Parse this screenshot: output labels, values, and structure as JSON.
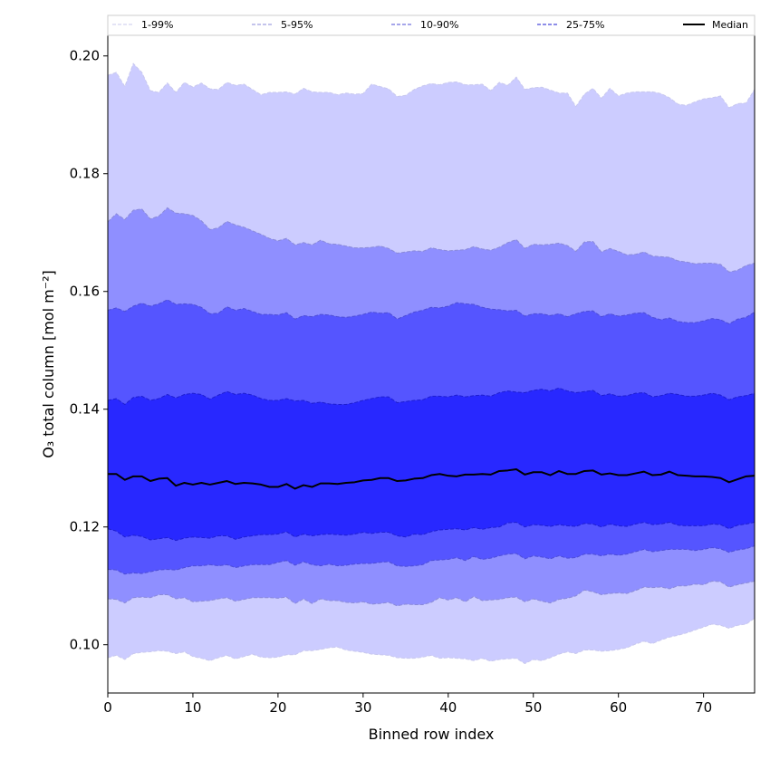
{
  "chart_data": {
    "type": "area",
    "title": "",
    "xlabel": "Binned row index",
    "ylabel": "O₃ total column [mol m⁻²]",
    "xlim": [
      0,
      76
    ],
    "ylim": [
      0.0918,
      0.2035
    ],
    "xticks": [
      0,
      10,
      20,
      30,
      40,
      50,
      60,
      70
    ],
    "yticks": [
      0.1,
      0.12,
      0.14,
      0.16,
      0.18,
      0.2
    ],
    "ytick_labels": [
      "0.10",
      "0.12",
      "0.14",
      "0.16",
      "0.18",
      "0.20"
    ],
    "grid": false,
    "legend_position": "top, horizontal",
    "x": [
      0,
      1,
      2,
      3,
      4,
      5,
      6,
      7,
      8,
      9,
      10,
      11,
      12,
      13,
      14,
      15,
      16,
      17,
      18,
      19,
      20,
      21,
      22,
      23,
      24,
      25,
      26,
      27,
      28,
      29,
      30,
      31,
      32,
      33,
      34,
      35,
      36,
      37,
      38,
      39,
      40,
      41,
      42,
      43,
      44,
      45,
      46,
      47,
      48,
      49,
      50,
      51,
      52,
      53,
      54,
      55,
      56,
      57,
      58,
      59,
      60,
      61,
      62,
      63,
      64,
      65,
      66,
      67,
      68,
      69,
      70,
      71,
      72,
      73,
      74,
      75,
      76
    ],
    "bands": [
      {
        "name": "1-99%",
        "fill": "#ccccff",
        "line_color": "#c8c8ee",
        "lower": [
          0.0978,
          0.0982,
          0.0975,
          0.0985,
          0.0987,
          0.0988,
          0.099,
          0.0989,
          0.0985,
          0.0988,
          0.098,
          0.0977,
          0.0973,
          0.0978,
          0.0982,
          0.0976,
          0.098,
          0.0984,
          0.0979,
          0.0978,
          0.0979,
          0.0983,
          0.0983,
          0.099,
          0.099,
          0.0992,
          0.0995,
          0.0996,
          0.0991,
          0.0989,
          0.0987,
          0.0984,
          0.0983,
          0.0982,
          0.0978,
          0.0977,
          0.0977,
          0.0979,
          0.0982,
          0.0977,
          0.0978,
          0.0977,
          0.0976,
          0.0973,
          0.0977,
          0.0972,
          0.0975,
          0.0976,
          0.0977,
          0.0968,
          0.0975,
          0.0973,
          0.0978,
          0.0984,
          0.0988,
          0.0985,
          0.0991,
          0.0991,
          0.0989,
          0.099,
          0.0992,
          0.0995,
          0.1001,
          0.1006,
          0.1002,
          0.1008,
          0.1013,
          0.1016,
          0.102,
          0.1025,
          0.103,
          0.1035,
          0.1033,
          0.1028,
          0.1033,
          0.1035,
          0.1045
        ],
        "upper": [
          0.1967,
          0.1972,
          0.1948,
          0.1987,
          0.1972,
          0.1941,
          0.1938,
          0.1954,
          0.1938,
          0.1955,
          0.1947,
          0.1954,
          0.1944,
          0.1943,
          0.1955,
          0.195,
          0.1952,
          0.1943,
          0.1934,
          0.1938,
          0.1938,
          0.1939,
          0.1935,
          0.1945,
          0.1939,
          0.1938,
          0.1938,
          0.1934,
          0.1937,
          0.1935,
          0.1936,
          0.1952,
          0.1948,
          0.1944,
          0.1931,
          0.1933,
          0.1943,
          0.1949,
          0.1953,
          0.1951,
          0.1955,
          0.1956,
          0.1951,
          0.1951,
          0.1952,
          0.1941,
          0.1955,
          0.195,
          0.1964,
          0.1943,
          0.1946,
          0.1947,
          0.1942,
          0.1937,
          0.1937,
          0.1914,
          0.1935,
          0.1945,
          0.1928,
          0.1945,
          0.1932,
          0.1937,
          0.1939,
          0.1939,
          0.1939,
          0.1936,
          0.1929,
          0.1918,
          0.1916,
          0.1922,
          0.1927,
          0.1929,
          0.1932,
          0.1912,
          0.1919,
          0.192,
          0.1943
        ]
      },
      {
        "name": "5-95%",
        "fill": "#8f8fff",
        "line_color": "#8a8ad8",
        "lower": [
          0.1078,
          0.1077,
          0.1071,
          0.108,
          0.1081,
          0.108,
          0.1085,
          0.1085,
          0.1078,
          0.108,
          0.1073,
          0.1074,
          0.1075,
          0.1078,
          0.108,
          0.1074,
          0.1077,
          0.108,
          0.108,
          0.108,
          0.1079,
          0.1081,
          0.107,
          0.1078,
          0.107,
          0.1078,
          0.1075,
          0.1075,
          0.1072,
          0.1071,
          0.1073,
          0.1069,
          0.107,
          0.1072,
          0.1066,
          0.1069,
          0.1068,
          0.1068,
          0.1072,
          0.108,
          0.1076,
          0.108,
          0.1073,
          0.1082,
          0.1075,
          0.1076,
          0.1077,
          0.108,
          0.1081,
          0.1073,
          0.1078,
          0.1074,
          0.1071,
          0.1077,
          0.1079,
          0.1083,
          0.1093,
          0.109,
          0.1085,
          0.1087,
          0.1088,
          0.1087,
          0.1092,
          0.1098,
          0.1097,
          0.1098,
          0.1095,
          0.11,
          0.11,
          0.1103,
          0.1102,
          0.1108,
          0.1107,
          0.1098,
          0.1102,
          0.1105,
          0.1108
        ],
        "upper": [
          0.1718,
          0.1732,
          0.1722,
          0.1738,
          0.174,
          0.1723,
          0.1728,
          0.1742,
          0.1733,
          0.1732,
          0.1729,
          0.172,
          0.1705,
          0.1708,
          0.1719,
          0.1713,
          0.1709,
          0.1703,
          0.1697,
          0.169,
          0.1686,
          0.169,
          0.1679,
          0.1683,
          0.1679,
          0.1687,
          0.1681,
          0.168,
          0.1677,
          0.1674,
          0.1674,
          0.1675,
          0.1677,
          0.1673,
          0.1665,
          0.1667,
          0.1669,
          0.1668,
          0.1674,
          0.1671,
          0.1669,
          0.167,
          0.1671,
          0.1676,
          0.1672,
          0.167,
          0.1675,
          0.1683,
          0.1688,
          0.1673,
          0.168,
          0.1679,
          0.168,
          0.1682,
          0.1678,
          0.1668,
          0.1684,
          0.1685,
          0.1667,
          0.1673,
          0.1668,
          0.1662,
          0.1663,
          0.1667,
          0.166,
          0.1659,
          0.1658,
          0.1652,
          0.165,
          0.1647,
          0.1648,
          0.1648,
          0.1646,
          0.1633,
          0.1636,
          0.1644,
          0.1648
        ]
      },
      {
        "name": "10-90%",
        "fill": "#5555ff",
        "line_color": "#4d4dd6",
        "lower": [
          0.1128,
          0.1127,
          0.112,
          0.1122,
          0.1121,
          0.1124,
          0.1127,
          0.1128,
          0.1127,
          0.1131,
          0.1134,
          0.1134,
          0.1136,
          0.1134,
          0.1136,
          0.1131,
          0.1134,
          0.1136,
          0.1136,
          0.1136,
          0.114,
          0.1143,
          0.1135,
          0.1141,
          0.1136,
          0.1134,
          0.1137,
          0.1134,
          0.1135,
          0.1137,
          0.1138,
          0.1138,
          0.114,
          0.1141,
          0.1134,
          0.1133,
          0.1134,
          0.1136,
          0.1143,
          0.1144,
          0.1145,
          0.1148,
          0.1143,
          0.115,
          0.1145,
          0.1147,
          0.1151,
          0.1154,
          0.1155,
          0.1146,
          0.1151,
          0.1149,
          0.1146,
          0.1151,
          0.1147,
          0.1148,
          0.1154,
          0.1154,
          0.1151,
          0.1154,
          0.1152,
          0.1154,
          0.1158,
          0.1162,
          0.1158,
          0.116,
          0.1162,
          0.1162,
          0.1162,
          0.116,
          0.1162,
          0.1165,
          0.1163,
          0.1157,
          0.1161,
          0.1163,
          0.1168
        ],
        "upper": [
          0.1568,
          0.1572,
          0.1566,
          0.1575,
          0.158,
          0.1575,
          0.1579,
          0.1586,
          0.1578,
          0.1579,
          0.1578,
          0.1573,
          0.1562,
          0.1563,
          0.1574,
          0.1568,
          0.1571,
          0.1566,
          0.1561,
          0.1561,
          0.156,
          0.1564,
          0.1553,
          0.1559,
          0.1557,
          0.1561,
          0.156,
          0.1557,
          0.1556,
          0.1558,
          0.1561,
          0.1565,
          0.1563,
          0.1564,
          0.1553,
          0.1559,
          0.1565,
          0.1568,
          0.1573,
          0.1572,
          0.1575,
          0.1581,
          0.1579,
          0.1578,
          0.1573,
          0.157,
          0.1569,
          0.1567,
          0.1568,
          0.1558,
          0.1562,
          0.1562,
          0.1559,
          0.1562,
          0.1557,
          0.1562,
          0.1566,
          0.1567,
          0.1557,
          0.1562,
          0.1558,
          0.156,
          0.1563,
          0.1564,
          0.1556,
          0.1552,
          0.1555,
          0.1549,
          0.1547,
          0.1547,
          0.155,
          0.1554,
          0.1552,
          0.1545,
          0.1553,
          0.1556,
          0.1565
        ]
      },
      {
        "name": "25-75%",
        "fill": "#2828ff",
        "line_color": "#1e1ed0",
        "lower": [
          0.1197,
          0.1193,
          0.1183,
          0.1186,
          0.1184,
          0.1178,
          0.118,
          0.1182,
          0.1177,
          0.1181,
          0.1183,
          0.1182,
          0.1181,
          0.1185,
          0.1185,
          0.1179,
          0.1183,
          0.1185,
          0.1187,
          0.1187,
          0.1188,
          0.1192,
          0.1183,
          0.1188,
          0.1185,
          0.1187,
          0.1188,
          0.1187,
          0.1186,
          0.1188,
          0.1191,
          0.1189,
          0.1191,
          0.1191,
          0.1185,
          0.1183,
          0.1188,
          0.1187,
          0.1192,
          0.1195,
          0.1196,
          0.1197,
          0.1195,
          0.1199,
          0.1196,
          0.1199,
          0.12,
          0.1207,
          0.1208,
          0.12,
          0.1204,
          0.1203,
          0.1201,
          0.1204,
          0.1202,
          0.1201,
          0.1206,
          0.1205,
          0.12,
          0.1205,
          0.1202,
          0.1201,
          0.1205,
          0.1208,
          0.1204,
          0.1205,
          0.1208,
          0.1203,
          0.1202,
          0.1202,
          0.1202,
          0.1205,
          0.1204,
          0.1197,
          0.1203,
          0.1205,
          0.1208
        ],
        "upper": [
          0.1415,
          0.1418,
          0.1408,
          0.142,
          0.1422,
          0.1415,
          0.1418,
          0.1425,
          0.1419,
          0.1425,
          0.1427,
          0.1425,
          0.1417,
          0.1424,
          0.143,
          0.1425,
          0.1427,
          0.1424,
          0.1418,
          0.1415,
          0.1415,
          0.1418,
          0.1414,
          0.1415,
          0.141,
          0.1412,
          0.1409,
          0.1408,
          0.1408,
          0.1411,
          0.1415,
          0.1418,
          0.1421,
          0.1421,
          0.1411,
          0.1413,
          0.1415,
          0.1416,
          0.1422,
          0.1422,
          0.1421,
          0.1424,
          0.1421,
          0.1423,
          0.1424,
          0.1422,
          0.1428,
          0.1431,
          0.1429,
          0.1428,
          0.1432,
          0.1434,
          0.1431,
          0.1436,
          0.1431,
          0.1428,
          0.143,
          0.1432,
          0.1423,
          0.1426,
          0.1422,
          0.1423,
          0.1427,
          0.1428,
          0.1421,
          0.1423,
          0.1427,
          0.1425,
          0.1422,
          0.1422,
          0.1424,
          0.1427,
          0.1424,
          0.1416,
          0.1421,
          0.1423,
          0.1427
        ]
      }
    ],
    "series": [
      {
        "name": "Median",
        "color": "#000000",
        "values": [
          0.129,
          0.129,
          0.128,
          0.1286,
          0.1286,
          0.1278,
          0.1282,
          0.1283,
          0.127,
          0.1275,
          0.1272,
          0.1275,
          0.1272,
          0.1275,
          0.1278,
          0.1273,
          0.1275,
          0.1274,
          0.1272,
          0.1268,
          0.1268,
          0.1273,
          0.1265,
          0.1271,
          0.1268,
          0.1274,
          0.1274,
          0.1273,
          0.1275,
          0.1276,
          0.1279,
          0.128,
          0.1283,
          0.1283,
          0.1278,
          0.1279,
          0.1282,
          0.1283,
          0.1288,
          0.129,
          0.1287,
          0.1286,
          0.1289,
          0.1289,
          0.129,
          0.1289,
          0.1295,
          0.1296,
          0.1298,
          0.1289,
          0.1293,
          0.1293,
          0.1288,
          0.1295,
          0.129,
          0.129,
          0.1295,
          0.1296,
          0.1289,
          0.1291,
          0.1288,
          0.1288,
          0.1291,
          0.1294,
          0.1288,
          0.1289,
          0.1294,
          0.1288,
          0.1287,
          0.1286,
          0.1286,
          0.1285,
          0.1283,
          0.1276,
          0.1281,
          0.1286,
          0.1287
        ]
      }
    ]
  }
}
